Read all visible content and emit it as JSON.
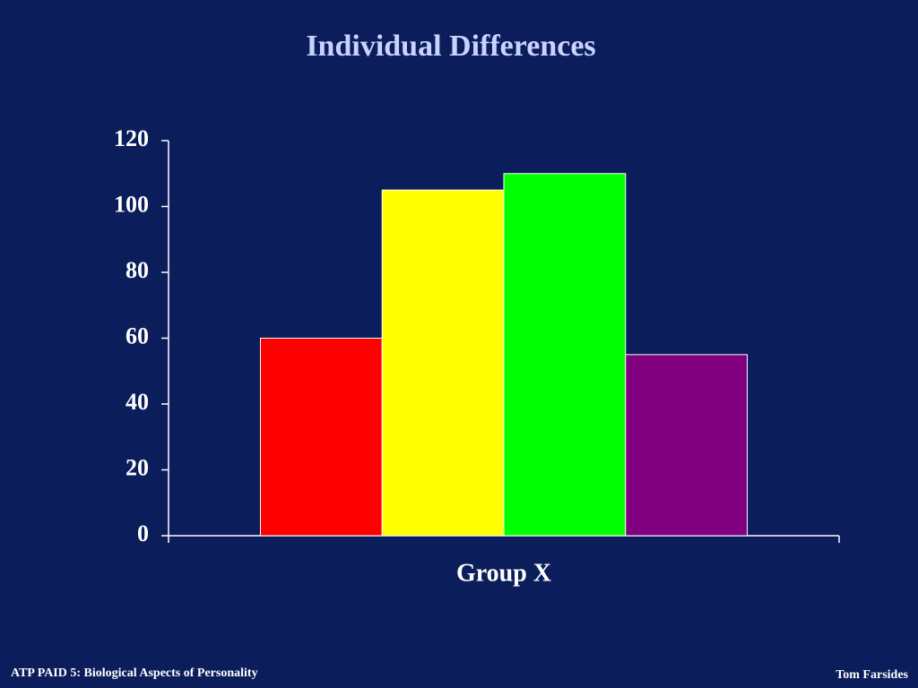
{
  "chart_data": {
    "type": "bar",
    "title": "Individual Differences",
    "categories": [
      "Group X"
    ],
    "series": [
      {
        "color": "#ff0000",
        "values": [
          60
        ]
      },
      {
        "color": "#ffff00",
        "values": [
          105
        ]
      },
      {
        "color": "#00ff00",
        "values": [
          110
        ]
      },
      {
        "color": "#800080",
        "values": [
          55
        ]
      }
    ],
    "ylim": [
      0,
      120
    ],
    "yticks": [
      0,
      20,
      40,
      60,
      80,
      100,
      120
    ],
    "grid": false
  },
  "footer": {
    "left": "ATP PAID 5: Biological Aspects of Personality",
    "right": "Tom Farsides"
  }
}
